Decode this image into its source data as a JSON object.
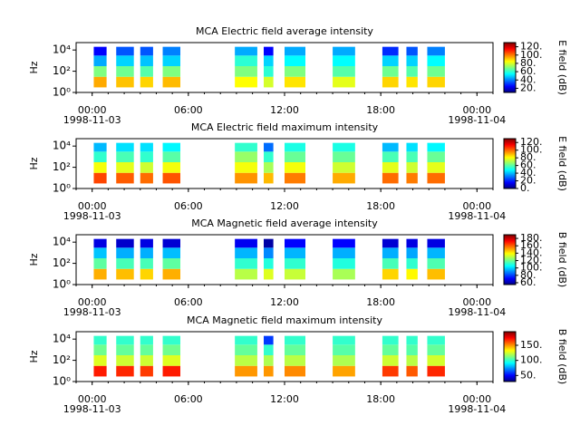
{
  "chart_data": [
    {
      "type": "heatmap",
      "title": "MCA  Electric field average intensity",
      "ylabel": "Hz",
      "colorbar_label": "E field (dB)",
      "xlim": [
        -1,
        25
      ],
      "xticks": [
        {
          "value": 0,
          "label": "00:00"
        },
        {
          "value": 6,
          "label": "06:00"
        },
        {
          "value": 12,
          "label": "12:00"
        },
        {
          "value": 18,
          "label": "18:00"
        },
        {
          "value": 24,
          "label": "00:00"
        }
      ],
      "xdates": [
        {
          "value": 0,
          "label": "1998-11-03"
        },
        {
          "value": 24,
          "label": "1998-11-04"
        }
      ],
      "ylog": true,
      "ylim": [
        1,
        50000
      ],
      "yticks": [
        {
          "value": 1,
          "label": "10⁰"
        },
        {
          "value": 100,
          "label": "10²"
        },
        {
          "value": 10000,
          "label": "10⁴"
        }
      ],
      "freq_edges": [
        3,
        30,
        300,
        3000,
        20000
      ],
      "clim": [
        10,
        130
      ],
      "cticks": [
        {
          "value": 20,
          "label": "20."
        },
        {
          "value": 40,
          "label": "40."
        },
        {
          "value": 60,
          "label": "60."
        },
        {
          "value": 80,
          "label": "80."
        },
        {
          "value": 100,
          "label": "100."
        },
        {
          "value": 120,
          "label": "120."
        }
      ],
      "segments": [
        {
          "start": 0.1,
          "end": 0.9,
          "values": [
            95,
            70,
            45,
            25
          ]
        },
        {
          "start": 1.5,
          "end": 2.6,
          "values": [
            92,
            68,
            50,
            35
          ]
        },
        {
          "start": 3.0,
          "end": 3.8,
          "values": [
            90,
            65,
            48,
            35
          ]
        },
        {
          "start": 4.4,
          "end": 5.5,
          "values": [
            93,
            70,
            50,
            40
          ]
        },
        {
          "start": 8.9,
          "end": 10.3,
          "values": [
            85,
            70,
            60,
            45
          ]
        },
        {
          "start": 10.7,
          "end": 11.3,
          "values": [
            80,
            60,
            50,
            25
          ]
        },
        {
          "start": 12.0,
          "end": 13.3,
          "values": [
            88,
            70,
            55,
            45
          ]
        },
        {
          "start": 15.0,
          "end": 16.4,
          "values": [
            82,
            65,
            55,
            45
          ]
        },
        {
          "start": 18.1,
          "end": 19.1,
          "values": [
            90,
            68,
            50,
            30
          ]
        },
        {
          "start": 19.6,
          "end": 20.3,
          "values": [
            88,
            65,
            50,
            35
          ]
        },
        {
          "start": 20.9,
          "end": 22.0,
          "values": [
            90,
            68,
            55,
            40
          ]
        }
      ]
    },
    {
      "type": "heatmap",
      "title": "MCA  Electric field maximum intensity",
      "ylabel": "Hz",
      "colorbar_label": "E field (dB)",
      "xlim": [
        -1,
        25
      ],
      "xticks": [
        {
          "value": 0,
          "label": "00:00"
        },
        {
          "value": 6,
          "label": "06:00"
        },
        {
          "value": 12,
          "label": "12:00"
        },
        {
          "value": 18,
          "label": "18:00"
        },
        {
          "value": 24,
          "label": "00:00"
        }
      ],
      "xdates": [
        {
          "value": 0,
          "label": "1998-11-03"
        },
        {
          "value": 24,
          "label": "1998-11-04"
        }
      ],
      "ylog": true,
      "ylim": [
        1,
        50000
      ],
      "yticks": [
        {
          "value": 1,
          "label": "10⁰"
        },
        {
          "value": 100,
          "label": "10²"
        },
        {
          "value": 10000,
          "label": "10⁴"
        }
      ],
      "freq_edges": [
        3,
        30,
        300,
        3000,
        20000
      ],
      "clim": [
        0,
        130
      ],
      "cticks": [
        {
          "value": 0,
          "label": "0."
        },
        {
          "value": 20,
          "label": "20."
        },
        {
          "value": 40,
          "label": "40."
        },
        {
          "value": 60,
          "label": "60."
        },
        {
          "value": 80,
          "label": "80."
        },
        {
          "value": 100,
          "label": "100."
        },
        {
          "value": 120,
          "label": "120."
        }
      ],
      "segments": [
        {
          "start": 0.1,
          "end": 0.9,
          "values": [
            105,
            80,
            55,
            40
          ]
        },
        {
          "start": 1.5,
          "end": 2.6,
          "values": [
            102,
            78,
            58,
            45
          ]
        },
        {
          "start": 3.0,
          "end": 3.8,
          "values": [
            100,
            75,
            55,
            45
          ]
        },
        {
          "start": 4.4,
          "end": 5.5,
          "values": [
            103,
            80,
            60,
            48
          ]
        },
        {
          "start": 8.9,
          "end": 10.3,
          "values": [
            95,
            80,
            68,
            55
          ]
        },
        {
          "start": 10.7,
          "end": 11.3,
          "values": [
            90,
            70,
            55,
            30
          ]
        },
        {
          "start": 12.0,
          "end": 13.3,
          "values": [
            98,
            80,
            62,
            52
          ]
        },
        {
          "start": 15.0,
          "end": 16.4,
          "values": [
            92,
            75,
            62,
            52
          ]
        },
        {
          "start": 18.1,
          "end": 19.1,
          "values": [
            100,
            78,
            58,
            40
          ]
        },
        {
          "start": 19.6,
          "end": 20.3,
          "values": [
            98,
            75,
            58,
            45
          ]
        },
        {
          "start": 20.9,
          "end": 22.0,
          "values": [
            100,
            78,
            62,
            48
          ]
        }
      ]
    },
    {
      "type": "heatmap",
      "title": "MCA  Magnetic field average intensity",
      "ylabel": "Hz",
      "colorbar_label": "B field (dB)",
      "xlim": [
        -1,
        25
      ],
      "xticks": [
        {
          "value": 0,
          "label": "00:00"
        },
        {
          "value": 6,
          "label": "06:00"
        },
        {
          "value": 12,
          "label": "12:00"
        },
        {
          "value": 18,
          "label": "18:00"
        },
        {
          "value": 24,
          "label": "00:00"
        }
      ],
      "xdates": [
        {
          "value": 0,
          "label": "1998-11-03"
        },
        {
          "value": 24,
          "label": "1998-11-04"
        }
      ],
      "ylog": true,
      "ylim": [
        1,
        50000
      ],
      "yticks": [
        {
          "value": 1,
          "label": "10⁰"
        },
        {
          "value": 100,
          "label": "10²"
        },
        {
          "value": 10000,
          "label": "10⁴"
        }
      ],
      "freq_edges": [
        3,
        30,
        300,
        3000,
        20000
      ],
      "clim": [
        55,
        190
      ],
      "cticks": [
        {
          "value": 60,
          "label": "60."
        },
        {
          "value": 80,
          "label": "80."
        },
        {
          "value": 100,
          "label": "100."
        },
        {
          "value": 120,
          "label": "120."
        },
        {
          "value": 140,
          "label": "140."
        },
        {
          "value": 160,
          "label": "160."
        },
        {
          "value": 180,
          "label": "180."
        }
      ],
      "segments": [
        {
          "start": 0.1,
          "end": 0.9,
          "values": [
            150,
            118,
            98,
            68
          ]
        },
        {
          "start": 1.5,
          "end": 2.6,
          "values": [
            148,
            115,
            95,
            65
          ]
        },
        {
          "start": 3.0,
          "end": 3.8,
          "values": [
            145,
            115,
            95,
            68
          ]
        },
        {
          "start": 4.4,
          "end": 5.5,
          "values": [
            150,
            118,
            97,
            66
          ]
        },
        {
          "start": 8.9,
          "end": 10.3,
          "values": [
            130,
            112,
            96,
            70
          ]
        },
        {
          "start": 10.7,
          "end": 11.3,
          "values": [
            135,
            110,
            90,
            60
          ]
        },
        {
          "start": 12.0,
          "end": 13.3,
          "values": [
            132,
            112,
            96,
            72
          ]
        },
        {
          "start": 15.0,
          "end": 16.4,
          "values": [
            128,
            110,
            95,
            72
          ]
        },
        {
          "start": 18.1,
          "end": 19.1,
          "values": [
            145,
            115,
            95,
            66
          ]
        },
        {
          "start": 19.6,
          "end": 20.3,
          "values": [
            140,
            112,
            94,
            68
          ]
        },
        {
          "start": 20.9,
          "end": 22.0,
          "values": [
            148,
            116,
            96,
            68
          ]
        }
      ]
    },
    {
      "type": "heatmap",
      "title": "MCA  Magnetic field maximum intensity",
      "ylabel": "Hz",
      "colorbar_label": "B field (dB)",
      "xlim": [
        -1,
        25
      ],
      "xticks": [
        {
          "value": 0,
          "label": "00:00"
        },
        {
          "value": 6,
          "label": "06:00"
        },
        {
          "value": 12,
          "label": "12:00"
        },
        {
          "value": 18,
          "label": "18:00"
        },
        {
          "value": 24,
          "label": "00:00"
        }
      ],
      "xdates": [
        {
          "value": 0,
          "label": "1998-11-03"
        },
        {
          "value": 24,
          "label": "1998-11-04"
        }
      ],
      "ylog": true,
      "ylim": [
        1,
        50000
      ],
      "yticks": [
        {
          "value": 1,
          "label": "10⁰"
        },
        {
          "value": 100,
          "label": "10²"
        },
        {
          "value": 10000,
          "label": "10⁴"
        }
      ],
      "freq_edges": [
        3,
        30,
        300,
        3000,
        20000
      ],
      "clim": [
        30,
        195
      ],
      "cticks": [
        {
          "value": 50,
          "label": "50."
        },
        {
          "value": 100,
          "label": "100."
        },
        {
          "value": 150,
          "label": "150."
        }
      ],
      "segments": [
        {
          "start": 0.1,
          "end": 0.9,
          "values": [
            170,
            128,
            110,
            100
          ]
        },
        {
          "start": 1.5,
          "end": 2.6,
          "values": [
            168,
            125,
            108,
            100
          ]
        },
        {
          "start": 3.0,
          "end": 3.8,
          "values": [
            165,
            125,
            108,
            100
          ]
        },
        {
          "start": 4.4,
          "end": 5.5,
          "values": [
            170,
            128,
            110,
            100
          ]
        },
        {
          "start": 8.9,
          "end": 10.3,
          "values": [
            150,
            122,
            108,
            100
          ]
        },
        {
          "start": 10.7,
          "end": 11.3,
          "values": [
            150,
            120,
            100,
            60
          ]
        },
        {
          "start": 12.0,
          "end": 13.3,
          "values": [
            152,
            122,
            108,
            100
          ]
        },
        {
          "start": 15.0,
          "end": 16.4,
          "values": [
            148,
            120,
            106,
            100
          ]
        },
        {
          "start": 18.1,
          "end": 19.1,
          "values": [
            165,
            125,
            108,
            100
          ]
        },
        {
          "start": 19.6,
          "end": 20.3,
          "values": [
            160,
            122,
            106,
            100
          ]
        },
        {
          "start": 20.9,
          "end": 22.0,
          "values": [
            168,
            126,
            108,
            100
          ]
        }
      ]
    }
  ]
}
